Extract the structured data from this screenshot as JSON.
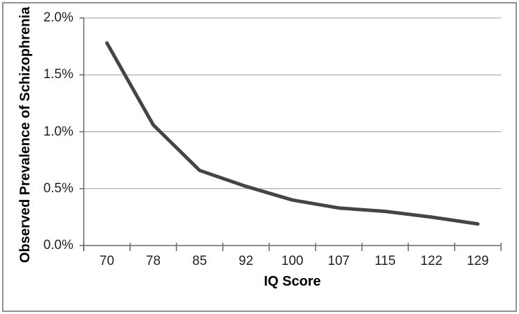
{
  "chart_data": {
    "type": "line",
    "title": "",
    "xlabel": "IQ Score",
    "ylabel": "Observed Prevalence of Schizophrenia",
    "x_axis_type": "categorical",
    "categories": [
      "70",
      "78",
      "85",
      "92",
      "100",
      "107",
      "115",
      "122",
      "129"
    ],
    "values": [
      1.78,
      1.06,
      0.66,
      0.52,
      0.4,
      0.33,
      0.3,
      0.25,
      0.19
    ],
    "values_unit": "percent",
    "ylim": [
      0,
      2
    ],
    "y_ticks": [
      {
        "value": 0.0,
        "label": "0.0%"
      },
      {
        "value": 0.5,
        "label": "0.5%"
      },
      {
        "value": 1.0,
        "label": "1.0%"
      },
      {
        "value": 1.5,
        "label": "1.5%"
      },
      {
        "value": 2.0,
        "label": "2.0%"
      }
    ],
    "grid": "horizontal",
    "legend": "none",
    "colors": {
      "line": "#454545",
      "grid": "#999999",
      "axis": "#666666",
      "tick_text": "#1f1f1f",
      "title_text": "#000000",
      "border": "#8f8f8f",
      "background": "#ffffff"
    }
  }
}
